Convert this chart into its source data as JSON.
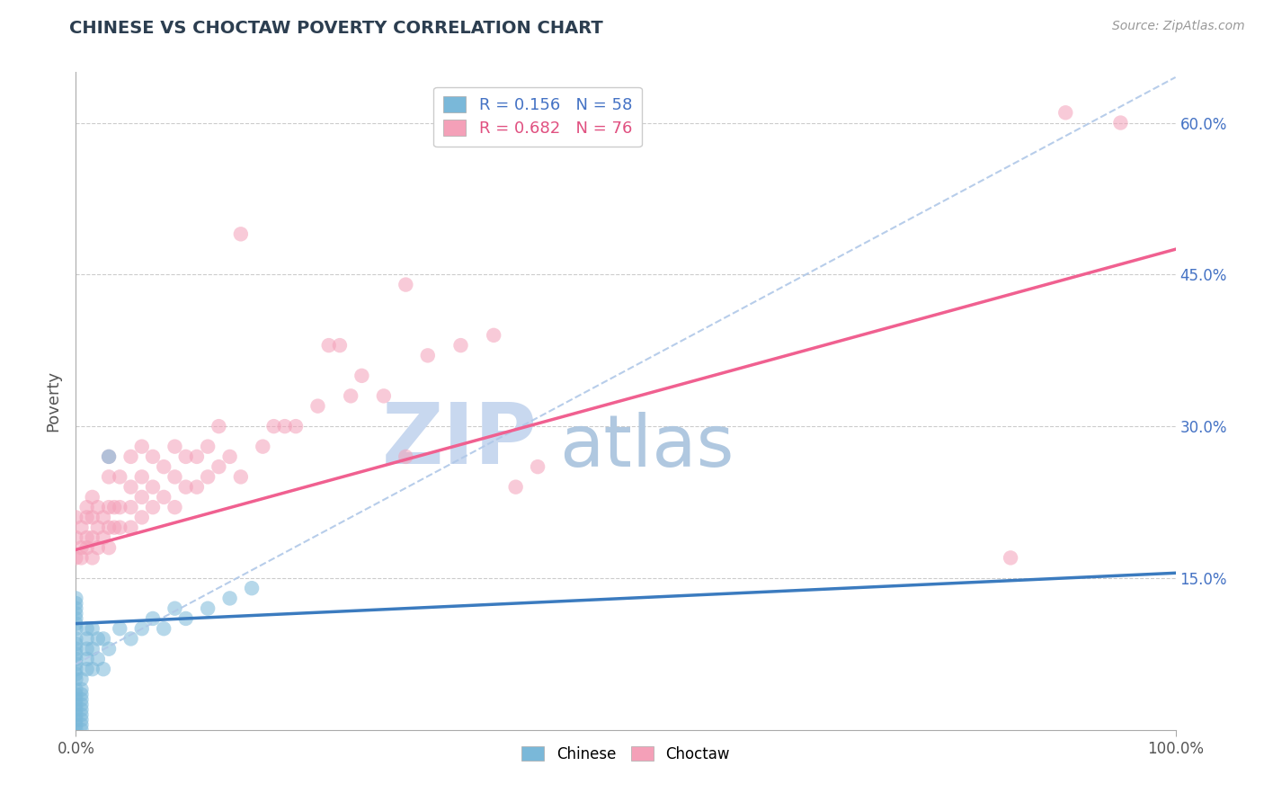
{
  "title": "CHINESE VS CHOCTAW POVERTY CORRELATION CHART",
  "source_text": "Source: ZipAtlas.com",
  "ylabel": "Poverty",
  "xlim": [
    0.0,
    1.0
  ],
  "ylim": [
    0.0,
    0.65
  ],
  "x_tick_labels": [
    "0.0%",
    "100.0%"
  ],
  "y_tick_positions": [
    0.15,
    0.3,
    0.45,
    0.6
  ],
  "y_tick_labels": [
    "15.0%",
    "30.0%",
    "45.0%",
    "60.0%"
  ],
  "chinese_color": "#7ab8d9",
  "choctaw_color": "#f4a0b8",
  "chinese_line_color": "#3b7bbf",
  "choctaw_line_color": "#f06090",
  "dashed_line_color": "#b0c8e8",
  "legend_chinese_R": 0.156,
  "legend_chinese_N": 58,
  "legend_choctaw_R": 0.682,
  "legend_choctaw_N": 76,
  "watermark_zip": "ZIP",
  "watermark_atlas": "atlas",
  "watermark_color_zip": "#c8d8ef",
  "watermark_color_atlas": "#b0c8e0",
  "chinese_line_x": [
    0.0,
    1.0
  ],
  "chinese_line_y": [
    0.105,
    0.155
  ],
  "choctaw_line_x": [
    0.0,
    1.0
  ],
  "choctaw_line_y": [
    0.178,
    0.475
  ],
  "dashed_line_x": [
    0.0,
    1.0
  ],
  "dashed_line_y": [
    0.065,
    0.645
  ],
  "chinese_scatter": [
    [
      0.0,
      0.0
    ],
    [
      0.0,
      0.005
    ],
    [
      0.0,
      0.01
    ],
    [
      0.0,
      0.015
    ],
    [
      0.0,
      0.02
    ],
    [
      0.0,
      0.025
    ],
    [
      0.0,
      0.03
    ],
    [
      0.0,
      0.035
    ],
    [
      0.0,
      0.04
    ],
    [
      0.0,
      0.05
    ],
    [
      0.0,
      0.055
    ],
    [
      0.0,
      0.06
    ],
    [
      0.0,
      0.065
    ],
    [
      0.0,
      0.07
    ],
    [
      0.0,
      0.075
    ],
    [
      0.0,
      0.08
    ],
    [
      0.0,
      0.085
    ],
    [
      0.0,
      0.09
    ],
    [
      0.0,
      0.1
    ],
    [
      0.0,
      0.105
    ],
    [
      0.0,
      0.11
    ],
    [
      0.0,
      0.115
    ],
    [
      0.0,
      0.12
    ],
    [
      0.0,
      0.125
    ],
    [
      0.0,
      0.13
    ],
    [
      0.005,
      0.0
    ],
    [
      0.005,
      0.005
    ],
    [
      0.005,
      0.01
    ],
    [
      0.005,
      0.015
    ],
    [
      0.005,
      0.02
    ],
    [
      0.005,
      0.025
    ],
    [
      0.005,
      0.03
    ],
    [
      0.005,
      0.035
    ],
    [
      0.005,
      0.04
    ],
    [
      0.005,
      0.05
    ],
    [
      0.01,
      0.06
    ],
    [
      0.01,
      0.07
    ],
    [
      0.01,
      0.08
    ],
    [
      0.01,
      0.09
    ],
    [
      0.01,
      0.1
    ],
    [
      0.015,
      0.06
    ],
    [
      0.015,
      0.08
    ],
    [
      0.015,
      0.1
    ],
    [
      0.02,
      0.07
    ],
    [
      0.02,
      0.09
    ],
    [
      0.025,
      0.06
    ],
    [
      0.025,
      0.09
    ],
    [
      0.03,
      0.08
    ],
    [
      0.03,
      0.27
    ],
    [
      0.04,
      0.1
    ],
    [
      0.05,
      0.09
    ],
    [
      0.06,
      0.1
    ],
    [
      0.07,
      0.11
    ],
    [
      0.08,
      0.1
    ],
    [
      0.09,
      0.12
    ],
    [
      0.1,
      0.11
    ],
    [
      0.12,
      0.12
    ],
    [
      0.14,
      0.13
    ],
    [
      0.16,
      0.14
    ]
  ],
  "choctaw_scatter": [
    [
      0.0,
      0.17
    ],
    [
      0.0,
      0.19
    ],
    [
      0.0,
      0.21
    ],
    [
      0.005,
      0.17
    ],
    [
      0.005,
      0.18
    ],
    [
      0.005,
      0.2
    ],
    [
      0.01,
      0.18
    ],
    [
      0.01,
      0.19
    ],
    [
      0.01,
      0.21
    ],
    [
      0.01,
      0.22
    ],
    [
      0.015,
      0.17
    ],
    [
      0.015,
      0.19
    ],
    [
      0.015,
      0.21
    ],
    [
      0.015,
      0.23
    ],
    [
      0.02,
      0.18
    ],
    [
      0.02,
      0.2
    ],
    [
      0.02,
      0.22
    ],
    [
      0.025,
      0.19
    ],
    [
      0.025,
      0.21
    ],
    [
      0.03,
      0.18
    ],
    [
      0.03,
      0.2
    ],
    [
      0.03,
      0.22
    ],
    [
      0.03,
      0.25
    ],
    [
      0.03,
      0.27
    ],
    [
      0.035,
      0.2
    ],
    [
      0.035,
      0.22
    ],
    [
      0.04,
      0.2
    ],
    [
      0.04,
      0.22
    ],
    [
      0.04,
      0.25
    ],
    [
      0.05,
      0.2
    ],
    [
      0.05,
      0.22
    ],
    [
      0.05,
      0.24
    ],
    [
      0.05,
      0.27
    ],
    [
      0.06,
      0.21
    ],
    [
      0.06,
      0.23
    ],
    [
      0.06,
      0.25
    ],
    [
      0.06,
      0.28
    ],
    [
      0.07,
      0.22
    ],
    [
      0.07,
      0.24
    ],
    [
      0.07,
      0.27
    ],
    [
      0.08,
      0.23
    ],
    [
      0.08,
      0.26
    ],
    [
      0.09,
      0.22
    ],
    [
      0.09,
      0.25
    ],
    [
      0.09,
      0.28
    ],
    [
      0.1,
      0.24
    ],
    [
      0.1,
      0.27
    ],
    [
      0.11,
      0.24
    ],
    [
      0.11,
      0.27
    ],
    [
      0.12,
      0.25
    ],
    [
      0.12,
      0.28
    ],
    [
      0.13,
      0.26
    ],
    [
      0.13,
      0.3
    ],
    [
      0.14,
      0.27
    ],
    [
      0.15,
      0.25
    ],
    [
      0.15,
      0.49
    ],
    [
      0.17,
      0.28
    ],
    [
      0.18,
      0.3
    ],
    [
      0.19,
      0.3
    ],
    [
      0.2,
      0.3
    ],
    [
      0.22,
      0.32
    ],
    [
      0.23,
      0.38
    ],
    [
      0.24,
      0.38
    ],
    [
      0.25,
      0.33
    ],
    [
      0.26,
      0.35
    ],
    [
      0.28,
      0.33
    ],
    [
      0.3,
      0.27
    ],
    [
      0.3,
      0.44
    ],
    [
      0.32,
      0.37
    ],
    [
      0.35,
      0.38
    ],
    [
      0.38,
      0.39
    ],
    [
      0.4,
      0.24
    ],
    [
      0.42,
      0.26
    ],
    [
      0.85,
      0.17
    ],
    [
      0.9,
      0.61
    ],
    [
      0.95,
      0.6
    ]
  ]
}
